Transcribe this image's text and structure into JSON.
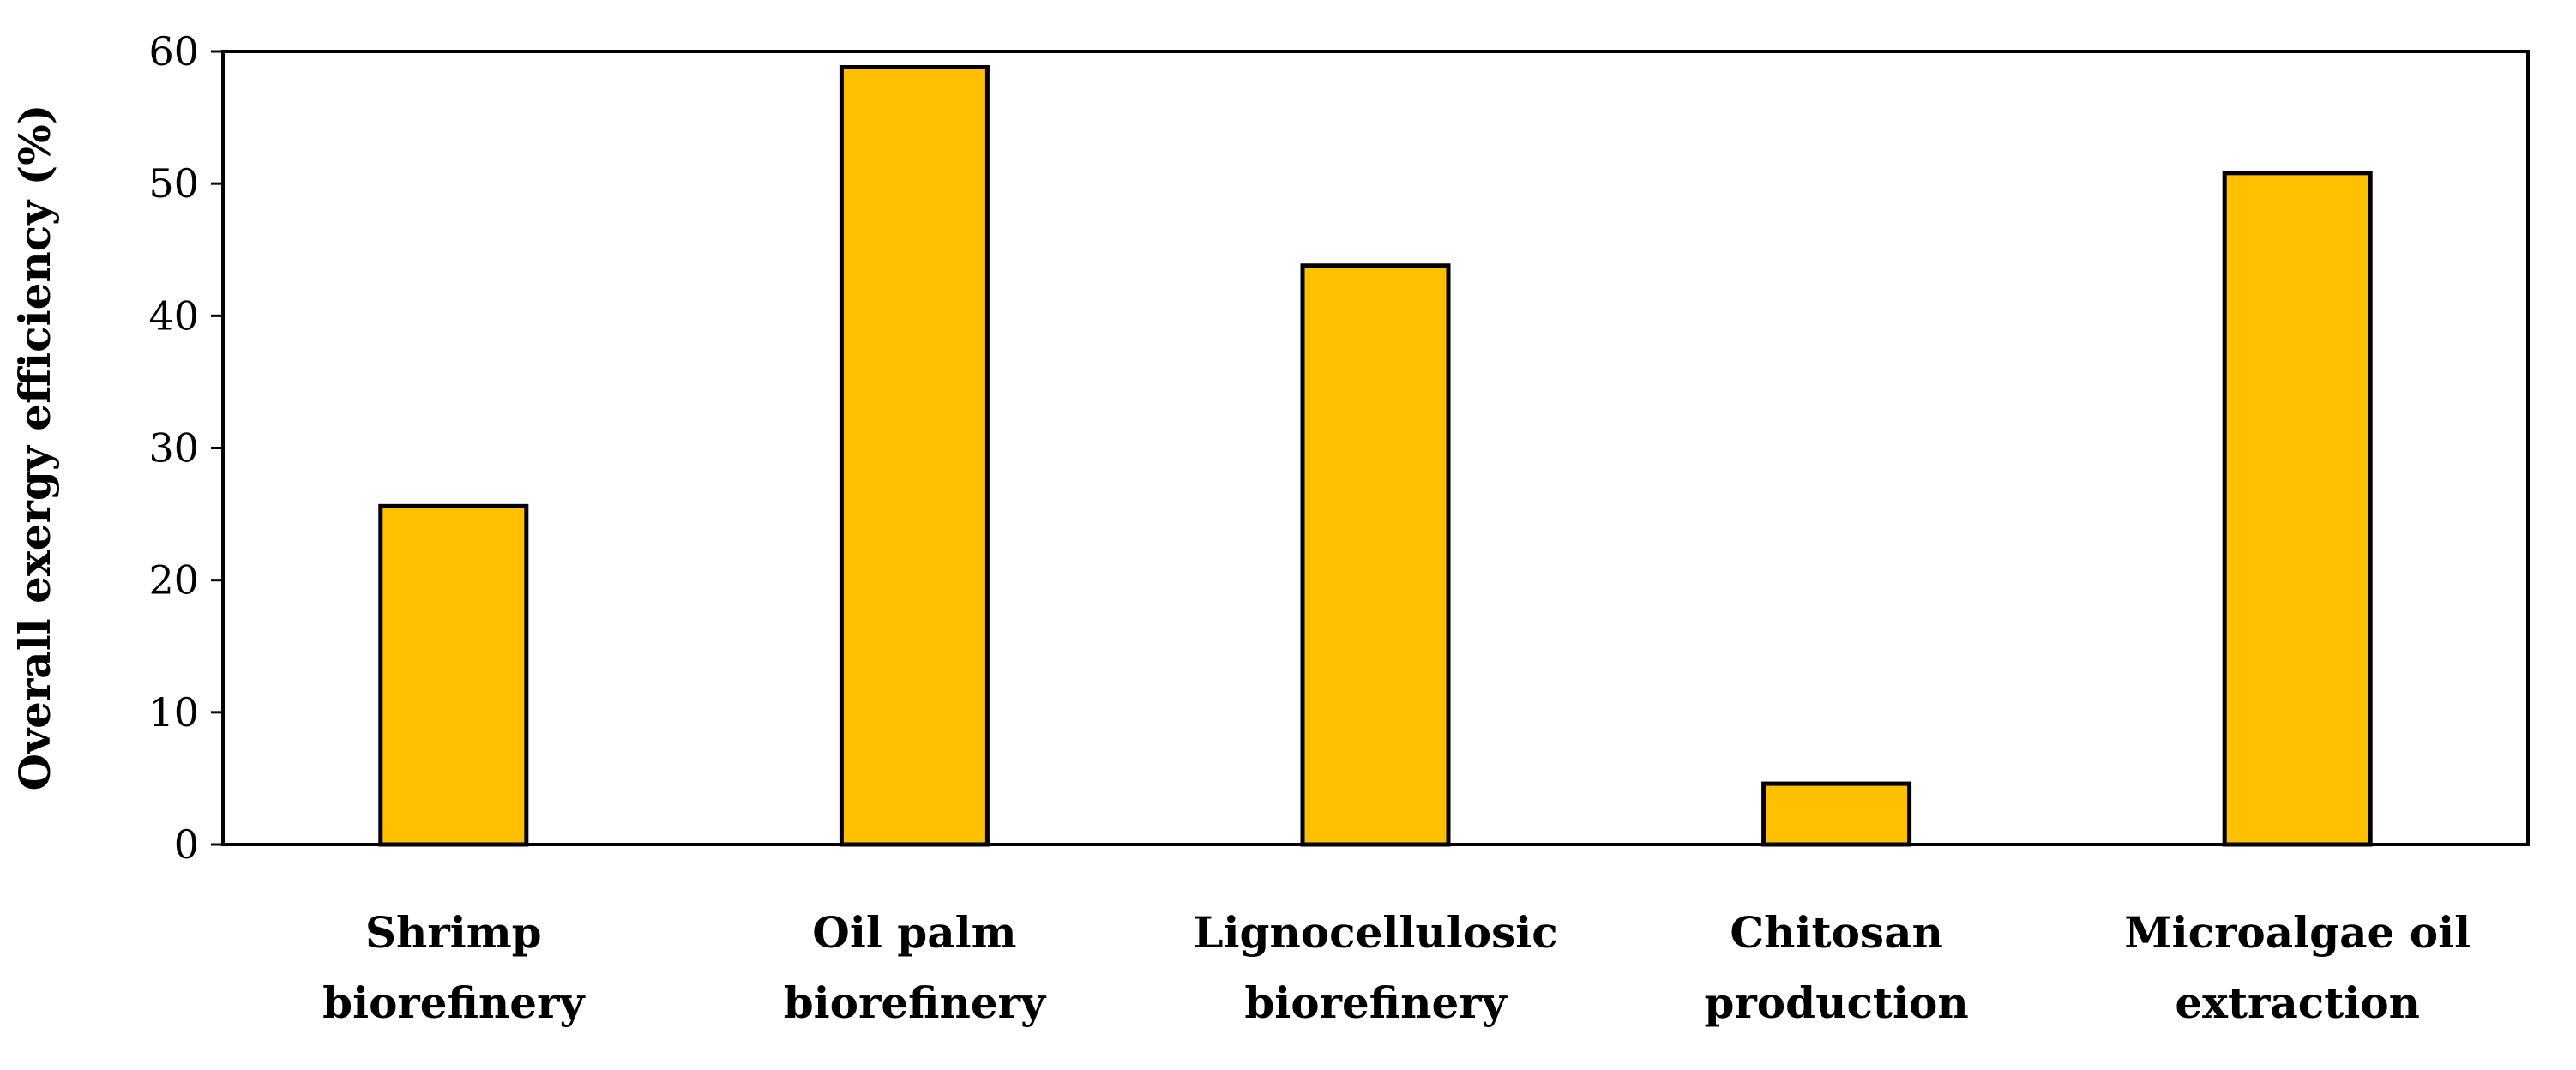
{
  "chart_data": {
    "type": "bar",
    "title": "",
    "xlabel": "",
    "ylabel": "Overall exergy efficiency (%)",
    "ylim": [
      0,
      60
    ],
    "yticks": [
      0,
      10,
      20,
      30,
      40,
      50,
      60
    ],
    "grid": false,
    "categories": [
      [
        "Shrimp",
        "biorefinery"
      ],
      [
        "Oil palm",
        "biorefinery"
      ],
      [
        "Lignocellulosic",
        "biorefinery"
      ],
      [
        "Chitosan",
        "production"
      ],
      [
        "Microalgae oil",
        "extraction"
      ]
    ],
    "values": [
      25.6,
      58.8,
      43.8,
      4.6,
      50.8
    ],
    "colors": {
      "bar_fill": "#FFC000",
      "bar_stroke": "#000000"
    }
  }
}
